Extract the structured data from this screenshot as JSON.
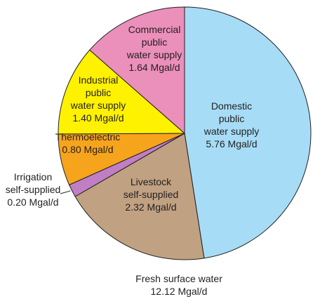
{
  "chart_data": {
    "type": "pie",
    "title": "Fresh surface water",
    "subtitle": "12.12 Mgal/d",
    "unit": "Mgal/d",
    "slices": [
      {
        "label": [
          "Domestic",
          "public",
          "water supply",
          "5.76 Mgal/d"
        ],
        "value": 5.76,
        "color": "#a6dcf6"
      },
      {
        "label": [
          "Livestock",
          "self-supplied",
          "2.32 Mgal/d"
        ],
        "value": 2.32,
        "color": "#c0a182"
      },
      {
        "label": [
          "Irrigation",
          "self-supplied",
          "0.20 Mgal/d"
        ],
        "value": 0.2,
        "color": "#c07fc4"
      },
      {
        "label": [
          "Thermoelectric",
          "0.80 Mgal/d"
        ],
        "value": 0.8,
        "color": "#f7a41d"
      },
      {
        "label": [
          "Industrial",
          "public",
          "water supply",
          "1.40 Mgal/d"
        ],
        "value": 1.4,
        "color": "#fff200"
      },
      {
        "label": [
          "Commercial",
          "public",
          "water supply",
          "1.64 Mgal/d"
        ],
        "value": 1.64,
        "color": "#eb8fbb"
      }
    ]
  }
}
